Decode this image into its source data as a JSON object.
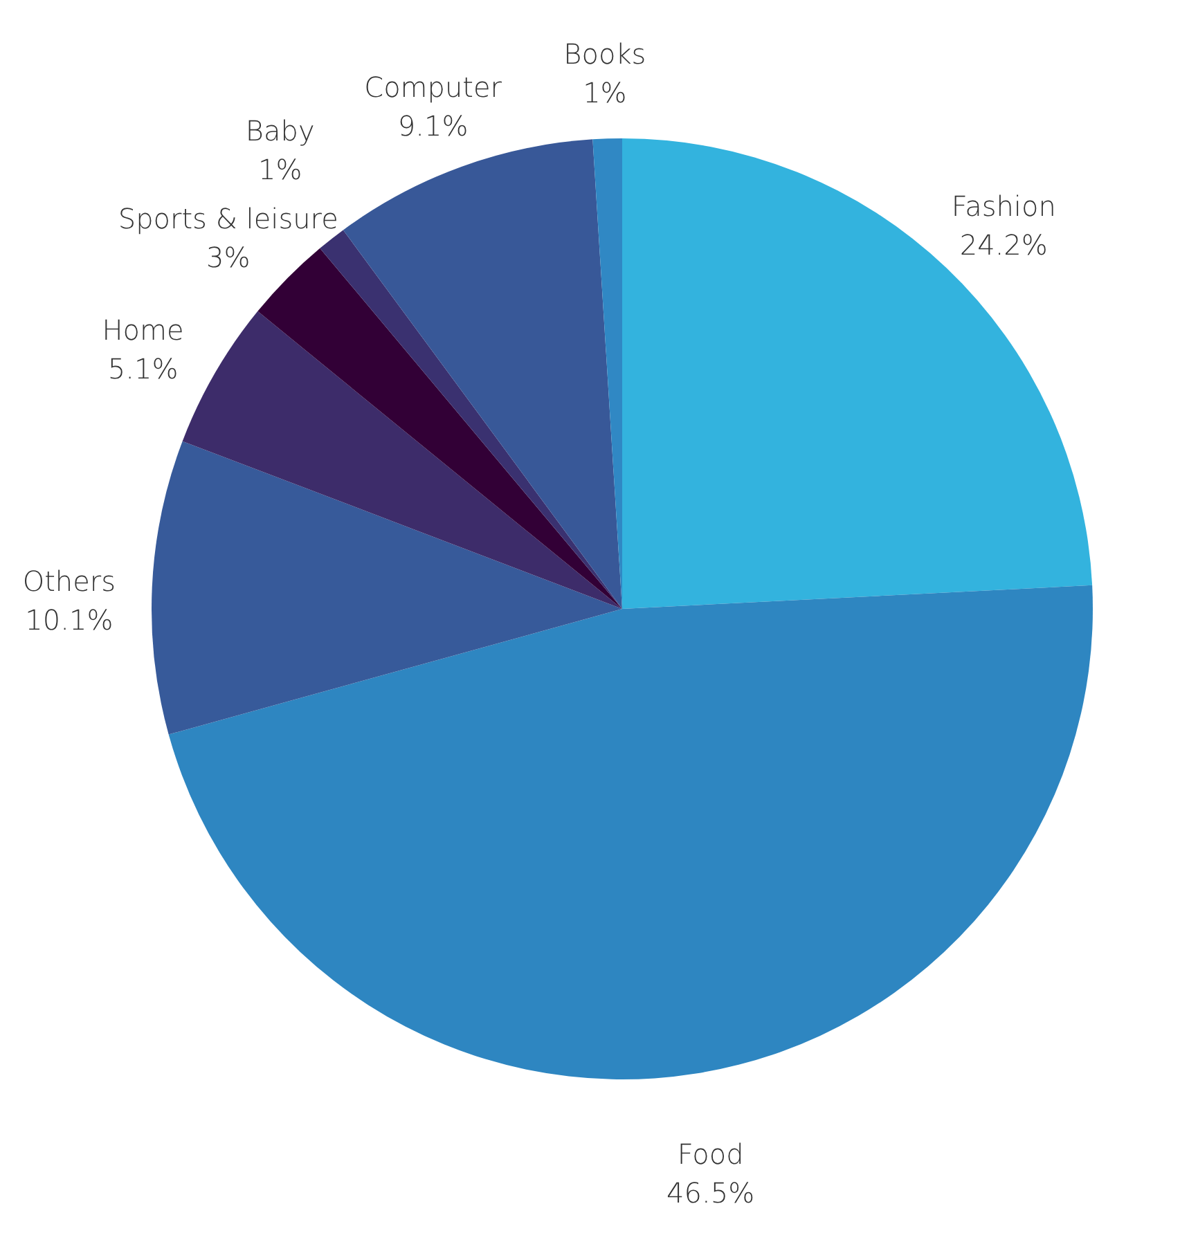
{
  "chart_data": {
    "type": "pie",
    "categories": [
      "Fashion",
      "Food",
      "Others",
      "Home",
      "Sports & leisure",
      "Baby",
      "Computer",
      "Books"
    ],
    "values": [
      24.2,
      46.5,
      10.1,
      5.1,
      3,
      1,
      9.1,
      1
    ],
    "value_labels": [
      "24.2%",
      "46.5%",
      "10.1%",
      "5.1%",
      "3%",
      "1%",
      "9.1%",
      "1%"
    ],
    "colors": [
      "#33b3de",
      "#2e86c1",
      "#375a9a",
      "#3d2c6a",
      "#320036",
      "#3a3170",
      "#385898",
      "#3088c4"
    ]
  }
}
